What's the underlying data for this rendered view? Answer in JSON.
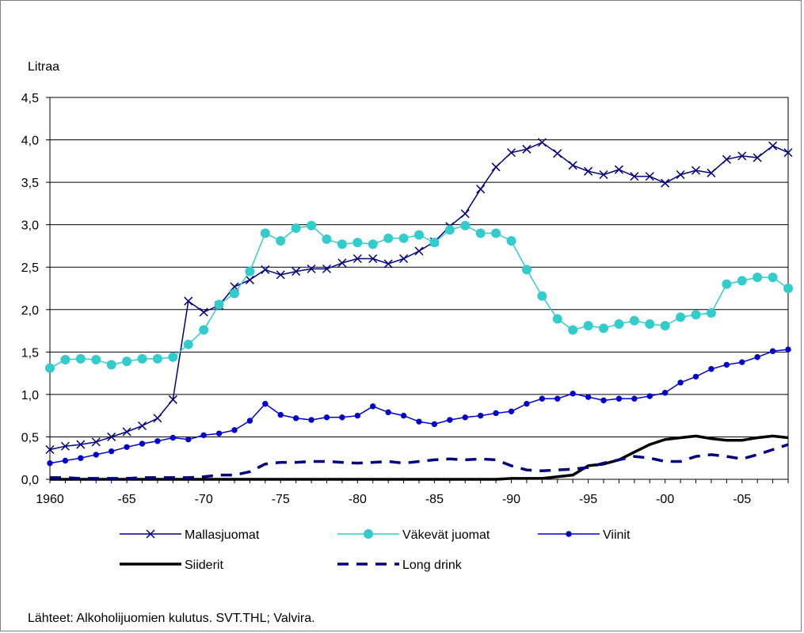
{
  "chart_data": {
    "type": "line",
    "ylabel": "Litraa",
    "ylim": [
      0,
      4.5
    ],
    "xlim": [
      1960,
      2008
    ],
    "yticks": [
      0,
      0.5,
      1,
      1.5,
      2,
      2.5,
      3,
      3.5,
      4,
      4.5
    ],
    "ytick_labels": [
      "0,0",
      "0,5",
      "1,0",
      "1,5",
      "2,0",
      "2,5",
      "3,0",
      "3,5",
      "4,0",
      "4,5"
    ],
    "xticks": [
      1960,
      1965,
      1970,
      1975,
      1980,
      1985,
      1990,
      1995,
      2000,
      2005
    ],
    "xtick_labels": [
      "1960",
      "-65",
      "-70",
      "-75",
      "-80",
      "-85",
      "-90",
      "-95",
      "-00",
      "-05"
    ],
    "grid": {
      "horizontal": true,
      "vertical": false
    },
    "x": [
      1960,
      1961,
      1962,
      1963,
      1964,
      1965,
      1966,
      1967,
      1968,
      1969,
      1970,
      1971,
      1972,
      1973,
      1974,
      1975,
      1976,
      1977,
      1978,
      1979,
      1980,
      1981,
      1982,
      1983,
      1984,
      1985,
      1986,
      1987,
      1988,
      1989,
      1990,
      1991,
      1992,
      1993,
      1994,
      1995,
      1996,
      1997,
      1998,
      1999,
      2000,
      2001,
      2002,
      2003,
      2004,
      2005,
      2006,
      2007,
      2008
    ],
    "series": [
      {
        "name": "Mallasjuomat",
        "color": "#000080",
        "marker": "x",
        "style": "solid",
        "values": [
          0.35,
          0.39,
          0.41,
          0.44,
          0.5,
          0.56,
          0.63,
          0.72,
          0.94,
          2.1,
          1.97,
          2.05,
          2.27,
          2.35,
          2.47,
          2.41,
          2.45,
          2.48,
          2.48,
          2.55,
          2.6,
          2.6,
          2.54,
          2.6,
          2.69,
          2.8,
          2.98,
          3.13,
          3.42,
          3.68,
          3.85,
          3.89,
          3.97,
          3.84,
          3.7,
          3.63,
          3.59,
          3.65,
          3.57,
          3.57,
          3.49,
          3.59,
          3.64,
          3.61,
          3.77,
          3.81,
          3.79,
          3.93,
          3.85
        ]
      },
      {
        "name": "Väkevät juomat",
        "color": "#33CCCC",
        "marker": "circle",
        "style": "solid",
        "values": [
          1.31,
          1.41,
          1.42,
          1.41,
          1.35,
          1.39,
          1.42,
          1.42,
          1.44,
          1.59,
          1.76,
          2.06,
          2.19,
          2.45,
          2.9,
          2.81,
          2.96,
          2.99,
          2.83,
          2.77,
          2.79,
          2.77,
          2.84,
          2.84,
          2.88,
          2.79,
          2.94,
          2.99,
          2.9,
          2.9,
          2.81,
          2.47,
          2.16,
          1.89,
          1.76,
          1.81,
          1.78,
          1.83,
          1.87,
          1.83,
          1.81,
          1.91,
          1.94,
          1.96,
          2.3,
          2.34,
          2.38,
          2.38,
          2.25
        ]
      },
      {
        "name": "Viinit",
        "color": "#0000CC",
        "marker": "dot",
        "style": "solid",
        "values": [
          0.19,
          0.22,
          0.25,
          0.29,
          0.33,
          0.38,
          0.42,
          0.45,
          0.49,
          0.47,
          0.52,
          0.54,
          0.58,
          0.69,
          0.89,
          0.76,
          0.72,
          0.7,
          0.73,
          0.73,
          0.75,
          0.86,
          0.79,
          0.75,
          0.68,
          0.65,
          0.7,
          0.73,
          0.75,
          0.78,
          0.8,
          0.89,
          0.95,
          0.95,
          1.01,
          0.97,
          0.93,
          0.95,
          0.95,
          0.98,
          1.02,
          1.14,
          1.21,
          1.3,
          1.35,
          1.38,
          1.44,
          1.51,
          1.53
        ]
      },
      {
        "name": "Siiderit",
        "color": "#000000",
        "marker": "none",
        "style": "solid",
        "values": [
          0.0,
          0.0,
          0.0,
          0.0,
          0.0,
          0.0,
          0.0,
          0.0,
          0.0,
          0.0,
          0.0,
          0.0,
          0.0,
          0.0,
          0.0,
          0.0,
          0.0,
          0.0,
          0.0,
          0.0,
          0.0,
          0.0,
          0.0,
          0.0,
          0.0,
          0.0,
          0.0,
          0.0,
          0.0,
          0.0,
          0.01,
          0.01,
          0.01,
          0.03,
          0.05,
          0.16,
          0.18,
          0.23,
          0.32,
          0.41,
          0.47,
          0.49,
          0.51,
          0.48,
          0.46,
          0.46,
          0.49,
          0.51,
          0.49
        ]
      },
      {
        "name": "Long drink",
        "color": "#000080",
        "marker": "none",
        "style": "dashed",
        "values": [
          0.02,
          0.02,
          0.01,
          0.01,
          0.01,
          0.01,
          0.02,
          0.02,
          0.02,
          0.02,
          0.03,
          0.05,
          0.05,
          0.09,
          0.18,
          0.2,
          0.2,
          0.21,
          0.21,
          0.2,
          0.19,
          0.2,
          0.21,
          0.19,
          0.21,
          0.23,
          0.24,
          0.23,
          0.24,
          0.23,
          0.16,
          0.11,
          0.1,
          0.11,
          0.12,
          0.14,
          0.19,
          0.23,
          0.27,
          0.25,
          0.21,
          0.21,
          0.27,
          0.29,
          0.27,
          0.24,
          0.29,
          0.35,
          0.41
        ]
      }
    ]
  },
  "source_note": "Lähteet: Alkoholijuomien kulutus. SVT.THL; Valvira."
}
